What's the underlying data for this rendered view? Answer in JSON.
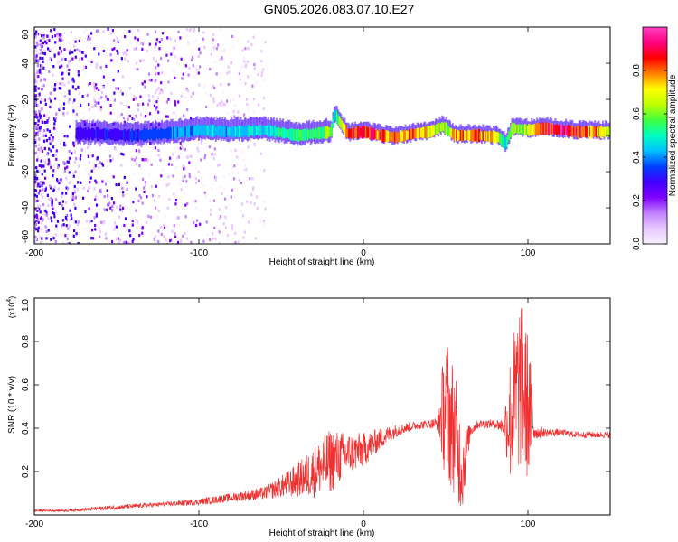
{
  "title": "GN05.2026.083.07.10.E27",
  "colors": {
    "snr_line": "#f03030",
    "colormap": [
      "#f8f0ff",
      "#e8c8ff",
      "#c080ff",
      "#8000ff",
      "#4000ff",
      "#0040ff",
      "#00c0ff",
      "#00ffc0",
      "#40ff40",
      "#c0ff00",
      "#ffff00",
      "#ff8000",
      "#ff0000",
      "#ff0080",
      "#ff40c0"
    ]
  },
  "chart_data": [
    {
      "type": "heatmap",
      "name": "spectrogram",
      "xlabel": "Height of straight line (km)",
      "ylabel": "Frequency (Hz)",
      "xlim": [
        -200,
        150
      ],
      "ylim": [
        -60,
        60
      ],
      "x_ticks": [
        -200,
        -100,
        0,
        100
      ],
      "x_tick_labels": [
        "-200",
        "-100",
        "0",
        "100"
      ],
      "y_ticks": [
        60,
        40,
        20,
        0,
        -20,
        -40,
        -60
      ],
      "y_tick_labels": [
        "60",
        "40",
        "20",
        "0",
        "-20",
        "-40",
        "-60"
      ],
      "ridge": {
        "height_km": [
          -170,
          -140,
          -120,
          -100,
          -80,
          -60,
          -40,
          -20,
          -18,
          -10,
          0,
          10,
          20,
          30,
          40,
          48,
          55,
          70,
          82,
          86,
          90,
          100,
          110,
          120,
          130,
          150
        ],
        "frequency_hz": [
          1,
          0,
          1,
          3,
          2,
          3,
          0,
          2,
          12,
          1,
          2,
          0,
          -1,
          1,
          2,
          5,
          0,
          0,
          -1,
          -5,
          4,
          3,
          4,
          3,
          2,
          2
        ],
        "amplitude": [
          0.3,
          0.35,
          0.4,
          0.45,
          0.45,
          0.5,
          0.55,
          0.6,
          0.5,
          0.85,
          0.9,
          0.85,
          0.8,
          0.8,
          0.75,
          0.6,
          0.8,
          0.85,
          0.7,
          0.5,
          0.6,
          0.7,
          0.9,
          0.95,
          0.9,
          0.7
        ]
      },
      "colorbar": {
        "label": "Normalized spectral amplitude",
        "range": [
          0,
          1
        ],
        "ticks": [
          0.0,
          0.2,
          0.4,
          0.6,
          0.8
        ],
        "tick_labels": [
          "0.0",
          "0.2",
          "0.4",
          "0.6",
          "0.8"
        ]
      }
    },
    {
      "type": "line",
      "name": "snr",
      "xlabel": "Height of straight line (km)",
      "ylabel": "SNR (10 * v/v)",
      "y_multiplier": "(x10",
      "y_multiplier_exp": "4",
      "y_multiplier_close": ")",
      "xlim": [
        -200,
        150
      ],
      "ylim": [
        0,
        1.0
      ],
      "x_ticks": [
        -200,
        -100,
        0,
        100
      ],
      "x_tick_labels": [
        "-200",
        "-100",
        "0",
        "100"
      ],
      "y_ticks": [
        1.0,
        0.8,
        0.6,
        0.4,
        0.2
      ],
      "y_tick_labels": [
        "1.0",
        "0.8",
        "0.6",
        "0.4",
        "0.2"
      ],
      "series": [
        {
          "name": "SNR",
          "x": [
            -200,
            -180,
            -160,
            -140,
            -120,
            -100,
            -80,
            -60,
            -50,
            -40,
            -30,
            -20,
            -10,
            0,
            10,
            20,
            30,
            40,
            45,
            50,
            55,
            60,
            65,
            70,
            80,
            85,
            90,
            95,
            100,
            105,
            110,
            120,
            130,
            140,
            150
          ],
          "y": [
            0.02,
            0.02,
            0.03,
            0.04,
            0.05,
            0.06,
            0.08,
            0.1,
            0.13,
            0.16,
            0.2,
            0.25,
            0.28,
            0.3,
            0.35,
            0.39,
            0.41,
            0.42,
            0.42,
            0.5,
            0.4,
            0.2,
            0.39,
            0.42,
            0.42,
            0.41,
            0.45,
            0.6,
            0.5,
            0.38,
            0.38,
            0.38,
            0.37,
            0.37,
            0.37
          ],
          "spread": [
            0.005,
            0.005,
            0.01,
            0.01,
            0.01,
            0.015,
            0.02,
            0.03,
            0.05,
            0.08,
            0.12,
            0.15,
            0.1,
            0.08,
            0.05,
            0.03,
            0.02,
            0.02,
            0.03,
            0.35,
            0.3,
            0.2,
            0.03,
            0.02,
            0.02,
            0.04,
            0.35,
            0.4,
            0.35,
            0.03,
            0.02,
            0.015,
            0.015,
            0.015,
            0.015
          ]
        }
      ]
    }
  ]
}
